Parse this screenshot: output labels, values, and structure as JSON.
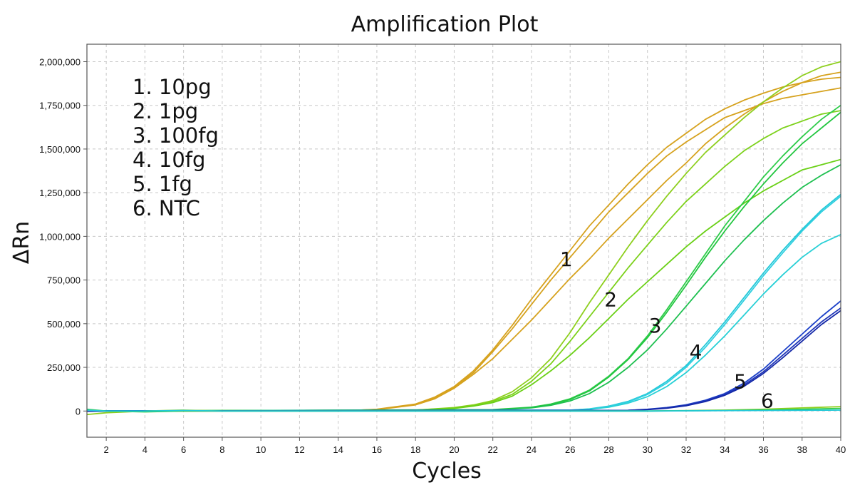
{
  "chart_data": {
    "type": "line",
    "title": "Amplification Plot",
    "xlabel": "Cycles",
    "ylabel": "ΔRn",
    "xlim": [
      1,
      40
    ],
    "ylim": [
      -150000,
      2100000
    ],
    "x_ticks": [
      2,
      4,
      6,
      8,
      10,
      12,
      14,
      16,
      18,
      20,
      22,
      24,
      26,
      28,
      30,
      32,
      34,
      36,
      38,
      40
    ],
    "y_ticks": [
      0,
      250000,
      500000,
      750000,
      1000000,
      1250000,
      1500000,
      1750000,
      2000000
    ],
    "y_tick_labels": [
      "0",
      "250,000",
      "500,000",
      "750,000",
      "1,000,000",
      "1,250,000",
      "1,500,000",
      "1,750,000",
      "2,000,000"
    ],
    "grid": true,
    "legend": {
      "position": "top-left",
      "entries": [
        "1. 10pg",
        "2. 1pg",
        "3. 100fg",
        "4. 10fg",
        "5. 1fg",
        "6. NTC"
      ]
    },
    "curve_labels": [
      {
        "text": "1",
        "x": 25.8,
        "y": 830000
      },
      {
        "text": "2",
        "x": 28.1,
        "y": 600000
      },
      {
        "text": "3",
        "x": 30.4,
        "y": 450000
      },
      {
        "text": "4",
        "x": 32.5,
        "y": 300000
      },
      {
        "text": "5",
        "x": 34.8,
        "y": 130000
      },
      {
        "text": "6",
        "x": 36.2,
        "y": 20000
      }
    ],
    "series": [
      {
        "group": 1,
        "color": "#d6a21e",
        "x": [
          1,
          14,
          16,
          18,
          19,
          20,
          21,
          22,
          23,
          24,
          25,
          26,
          27,
          28,
          29,
          30,
          31,
          32,
          33,
          34,
          35,
          36,
          37,
          38,
          39,
          40
        ],
        "y": [
          0,
          0,
          10000,
          40000,
          80000,
          140000,
          230000,
          350000,
          490000,
          640000,
          780000,
          920000,
          1060000,
          1180000,
          1300000,
          1410000,
          1510000,
          1590000,
          1670000,
          1730000,
          1780000,
          1820000,
          1855000,
          1880000,
          1900000,
          1910000
        ]
      },
      {
        "group": 1,
        "color": "#d6a21e",
        "x": [
          1,
          14,
          16,
          18,
          19,
          20,
          21,
          22,
          23,
          24,
          25,
          26,
          27,
          28,
          29,
          30,
          31,
          32,
          33,
          34,
          35,
          36,
          37,
          38,
          39,
          40
        ],
        "y": [
          0,
          0,
          9000,
          38000,
          75000,
          135000,
          220000,
          340000,
          470000,
          610000,
          750000,
          880000,
          1010000,
          1140000,
          1250000,
          1360000,
          1460000,
          1540000,
          1610000,
          1680000,
          1720000,
          1760000,
          1790000,
          1810000,
          1830000,
          1850000
        ]
      },
      {
        "group": 1,
        "color": "#d6a21e",
        "x": [
          1,
          14,
          16,
          18,
          19,
          20,
          21,
          22,
          23,
          24,
          25,
          26,
          27,
          28,
          29,
          30,
          31,
          32,
          33,
          34,
          35,
          36,
          37,
          38,
          39,
          40
        ],
        "y": [
          0,
          0,
          8000,
          35000,
          70000,
          130000,
          210000,
          300000,
          410000,
          520000,
          640000,
          760000,
          870000,
          990000,
          1100000,
          1210000,
          1320000,
          1420000,
          1530000,
          1620000,
          1700000,
          1770000,
          1830000,
          1880000,
          1920000,
          1940000
        ]
      },
      {
        "group": 2,
        "color": "#8ecf1e",
        "x": [
          1,
          18,
          20,
          21,
          22,
          23,
          24,
          25,
          26,
          27,
          28,
          29,
          30,
          31,
          32,
          33,
          34,
          35,
          36,
          37,
          38,
          39,
          40
        ],
        "y": [
          0,
          5000,
          20000,
          35000,
          60000,
          110000,
          190000,
          300000,
          450000,
          620000,
          780000,
          940000,
          1090000,
          1230000,
          1360000,
          1480000,
          1580000,
          1680000,
          1770000,
          1850000,
          1920000,
          1970000,
          2000000
        ]
      },
      {
        "group": 2,
        "color": "#7cd11a",
        "x": [
          1,
          18,
          20,
          21,
          22,
          23,
          24,
          25,
          26,
          27,
          28,
          29,
          30,
          31,
          32,
          33,
          34,
          35,
          36,
          37,
          38,
          39,
          40
        ],
        "y": [
          0,
          5000,
          18000,
          32000,
          55000,
          95000,
          170000,
          270000,
          400000,
          540000,
          680000,
          820000,
          950000,
          1080000,
          1200000,
          1300000,
          1400000,
          1490000,
          1560000,
          1620000,
          1660000,
          1700000,
          1720000
        ]
      },
      {
        "group": 2,
        "color": "#6ad016",
        "x": [
          1,
          18,
          20,
          21,
          22,
          23,
          24,
          25,
          26,
          27,
          28,
          29,
          30,
          31,
          32,
          33,
          34,
          35,
          36,
          37,
          38,
          39,
          40
        ],
        "y": [
          0,
          4000,
          15000,
          28000,
          48000,
          85000,
          150000,
          230000,
          320000,
          420000,
          530000,
          640000,
          740000,
          840000,
          940000,
          1030000,
          1110000,
          1190000,
          1260000,
          1320000,
          1380000,
          1410000,
          1440000
        ]
      },
      {
        "group": 3,
        "color": "#2ecc4a",
        "x": [
          1,
          22,
          24,
          25,
          26,
          27,
          28,
          29,
          30,
          31,
          32,
          33,
          34,
          35,
          36,
          37,
          38,
          39,
          40
        ],
        "y": [
          0,
          8000,
          22000,
          40000,
          70000,
          120000,
          200000,
          300000,
          430000,
          580000,
          740000,
          900000,
          1060000,
          1200000,
          1340000,
          1460000,
          1570000,
          1670000,
          1750000
        ]
      },
      {
        "group": 3,
        "color": "#22c640",
        "x": [
          1,
          22,
          24,
          25,
          26,
          27,
          28,
          29,
          30,
          31,
          32,
          33,
          34,
          35,
          36,
          37,
          38,
          39,
          40
        ],
        "y": [
          0,
          7000,
          20000,
          38000,
          66000,
          115000,
          195000,
          295000,
          420000,
          565000,
          720000,
          880000,
          1030000,
          1170000,
          1300000,
          1420000,
          1530000,
          1620000,
          1710000
        ]
      },
      {
        "group": 3,
        "color": "#1ec050",
        "x": [
          1,
          22,
          24,
          25,
          26,
          27,
          28,
          29,
          30,
          31,
          32,
          33,
          34,
          35,
          36,
          37,
          38,
          39,
          40
        ],
        "y": [
          0,
          6000,
          18000,
          33000,
          58000,
          100000,
          165000,
          250000,
          350000,
          470000,
          600000,
          730000,
          860000,
          980000,
          1090000,
          1190000,
          1280000,
          1350000,
          1410000
        ]
      },
      {
        "group": 4,
        "color": "#22c8d8",
        "x": [
          1,
          26,
          27,
          28,
          29,
          30,
          31,
          32,
          33,
          34,
          35,
          36,
          37,
          38,
          39,
          40
        ],
        "y": [
          0,
          5000,
          12000,
          28000,
          55000,
          100000,
          170000,
          260000,
          380000,
          510000,
          650000,
          790000,
          920000,
          1040000,
          1150000,
          1240000
        ]
      },
      {
        "group": 4,
        "color": "#30cfe0",
        "x": [
          1,
          26,
          27,
          28,
          29,
          30,
          31,
          32,
          33,
          34,
          35,
          36,
          37,
          38,
          39,
          40
        ],
        "y": [
          0,
          5000,
          11000,
          26000,
          52000,
          95000,
          160000,
          250000,
          365000,
          495000,
          635000,
          775000,
          905000,
          1030000,
          1140000,
          1230000
        ]
      },
      {
        "group": 4,
        "color": "#28d0d6",
        "x": [
          1,
          26,
          27,
          28,
          29,
          30,
          31,
          32,
          33,
          34,
          35,
          36,
          37,
          38,
          39,
          40
        ],
        "y": [
          0,
          4000,
          10000,
          22000,
          45000,
          82000,
          140000,
          220000,
          320000,
          430000,
          550000,
          670000,
          780000,
          880000,
          960000,
          1010000
        ]
      },
      {
        "group": 5,
        "color": "#1a3fc8",
        "x": [
          1,
          29,
          30,
          31,
          32,
          33,
          34,
          35,
          36,
          37,
          38,
          39,
          40
        ],
        "y": [
          0,
          4000,
          10000,
          20000,
          36000,
          62000,
          100000,
          160000,
          240000,
          340000,
          440000,
          540000,
          630000
        ]
      },
      {
        "group": 5,
        "color": "#2036b8",
        "x": [
          1,
          29,
          30,
          31,
          32,
          33,
          34,
          35,
          36,
          37,
          38,
          39,
          40
        ],
        "y": [
          0,
          4000,
          9000,
          18000,
          33000,
          58000,
          95000,
          150000,
          225000,
          320000,
          415000,
          510000,
          590000
        ]
      },
      {
        "group": 5,
        "color": "#1428a8",
        "x": [
          1,
          29,
          30,
          31,
          32,
          33,
          34,
          35,
          36,
          37,
          38,
          39,
          40
        ],
        "y": [
          0,
          3000,
          8000,
          16000,
          30000,
          54000,
          90000,
          142000,
          215000,
          305000,
          400000,
          495000,
          575000
        ]
      },
      {
        "group": 6,
        "color": "#8ecf1e",
        "x": [
          1,
          2,
          4,
          6,
          8,
          10,
          14,
          30,
          34,
          36,
          38,
          40
        ],
        "y": [
          -20000,
          -10000,
          0,
          5000,
          0,
          0,
          0,
          0,
          5000,
          10000,
          18000,
          25000
        ]
      },
      {
        "group": 6,
        "color": "#2ecc4a",
        "x": [
          1,
          2,
          4,
          6,
          8,
          10,
          14,
          30,
          34,
          36,
          38,
          40
        ],
        "y": [
          10000,
          0,
          -5000,
          0,
          0,
          0,
          0,
          0,
          3000,
          6000,
          10000,
          15000
        ]
      },
      {
        "group": 6,
        "color": "#22c8d8",
        "x": [
          1,
          2,
          4,
          6,
          8,
          10,
          14,
          30,
          40
        ],
        "y": [
          5000,
          0,
          0,
          3000,
          0,
          0,
          0,
          0,
          5000
        ]
      }
    ]
  }
}
